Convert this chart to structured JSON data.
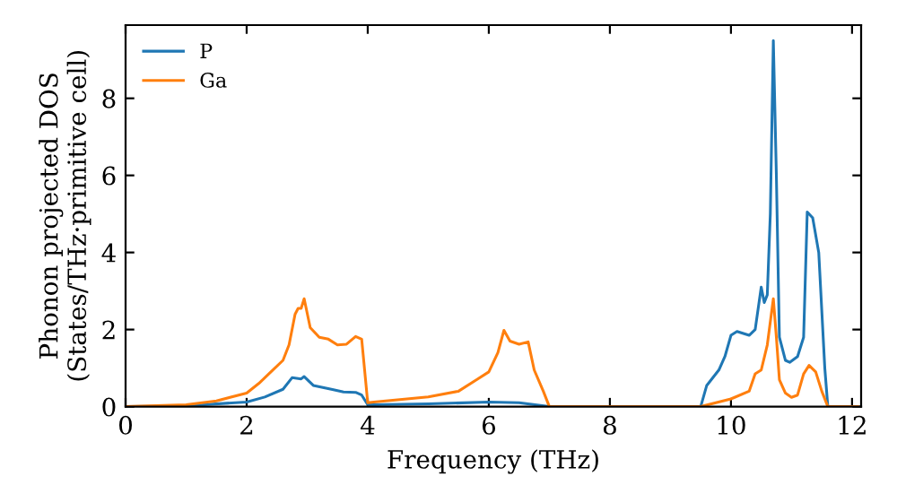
{
  "chart_data": {
    "type": "line",
    "xlabel": "Frequency (THz)",
    "ylabel": "Phonon projected DOS\n(States/THz·primitive cell)",
    "xlim": [
      0,
      12.15
    ],
    "ylim": [
      0,
      9.9
    ],
    "xticks": [
      0,
      2,
      4,
      6,
      8,
      10,
      12
    ],
    "yticks": [
      0,
      2,
      4,
      6,
      8
    ],
    "grid": false,
    "legend": "top left",
    "marker": "none",
    "line_style": "solid",
    "series": [
      {
        "name": "P",
        "color": "#1f77b4",
        "x": [
          0,
          1,
          2,
          2.3,
          2.6,
          2.75,
          2.9,
          2.95,
          3.1,
          3.4,
          3.6,
          3.8,
          3.9,
          4.0,
          4.1,
          5,
          6,
          6.5,
          7,
          9.5,
          9.6,
          9.8,
          9.9,
          10.0,
          10.1,
          10.3,
          10.4,
          10.5,
          10.55,
          10.6,
          10.65,
          10.7,
          10.75,
          10.8,
          10.9,
          10.97,
          11.1,
          11.2,
          11.26,
          11.35,
          11.45,
          11.55,
          11.6,
          12.1
        ],
        "values": [
          0,
          0.02,
          0.12,
          0.25,
          0.45,
          0.75,
          0.72,
          0.78,
          0.55,
          0.45,
          0.38,
          0.37,
          0.3,
          0.05,
          0.05,
          0.07,
          0.12,
          0.1,
          0,
          0,
          0.55,
          0.95,
          1.3,
          1.85,
          1.95,
          1.85,
          2.0,
          3.1,
          2.7,
          2.9,
          5.0,
          9.5,
          6.0,
          1.8,
          1.2,
          1.15,
          1.3,
          1.8,
          5.05,
          4.9,
          4.0,
          1.0,
          0,
          0
        ]
      },
      {
        "name": "Ga",
        "color": "#ff7f0e",
        "x": [
          0,
          1,
          1.5,
          2,
          2.2,
          2.4,
          2.6,
          2.7,
          2.8,
          2.85,
          2.9,
          2.95,
          3.05,
          3.2,
          3.35,
          3.5,
          3.65,
          3.8,
          3.9,
          4.0,
          4.1,
          5,
          5.5,
          5.8,
          6.0,
          6.15,
          6.25,
          6.35,
          6.5,
          6.65,
          6.75,
          6.9,
          7.0,
          9.5,
          10,
          10.3,
          10.4,
          10.5,
          10.6,
          10.7,
          10.75,
          10.8,
          10.9,
          11.0,
          11.1,
          11.2,
          11.29,
          11.4,
          11.5,
          11.6,
          12.1
        ],
        "values": [
          0,
          0.05,
          0.15,
          0.35,
          0.6,
          0.9,
          1.2,
          1.6,
          2.4,
          2.55,
          2.55,
          2.8,
          2.05,
          1.8,
          1.75,
          1.6,
          1.62,
          1.82,
          1.75,
          0.1,
          0.12,
          0.25,
          0.4,
          0.7,
          0.9,
          1.4,
          1.98,
          1.7,
          1.62,
          1.68,
          0.95,
          0.4,
          0,
          0,
          0.2,
          0.4,
          0.85,
          0.95,
          1.6,
          2.8,
          1.8,
          0.7,
          0.35,
          0.24,
          0.3,
          0.85,
          1.07,
          0.9,
          0.4,
          0,
          0
        ]
      }
    ]
  }
}
